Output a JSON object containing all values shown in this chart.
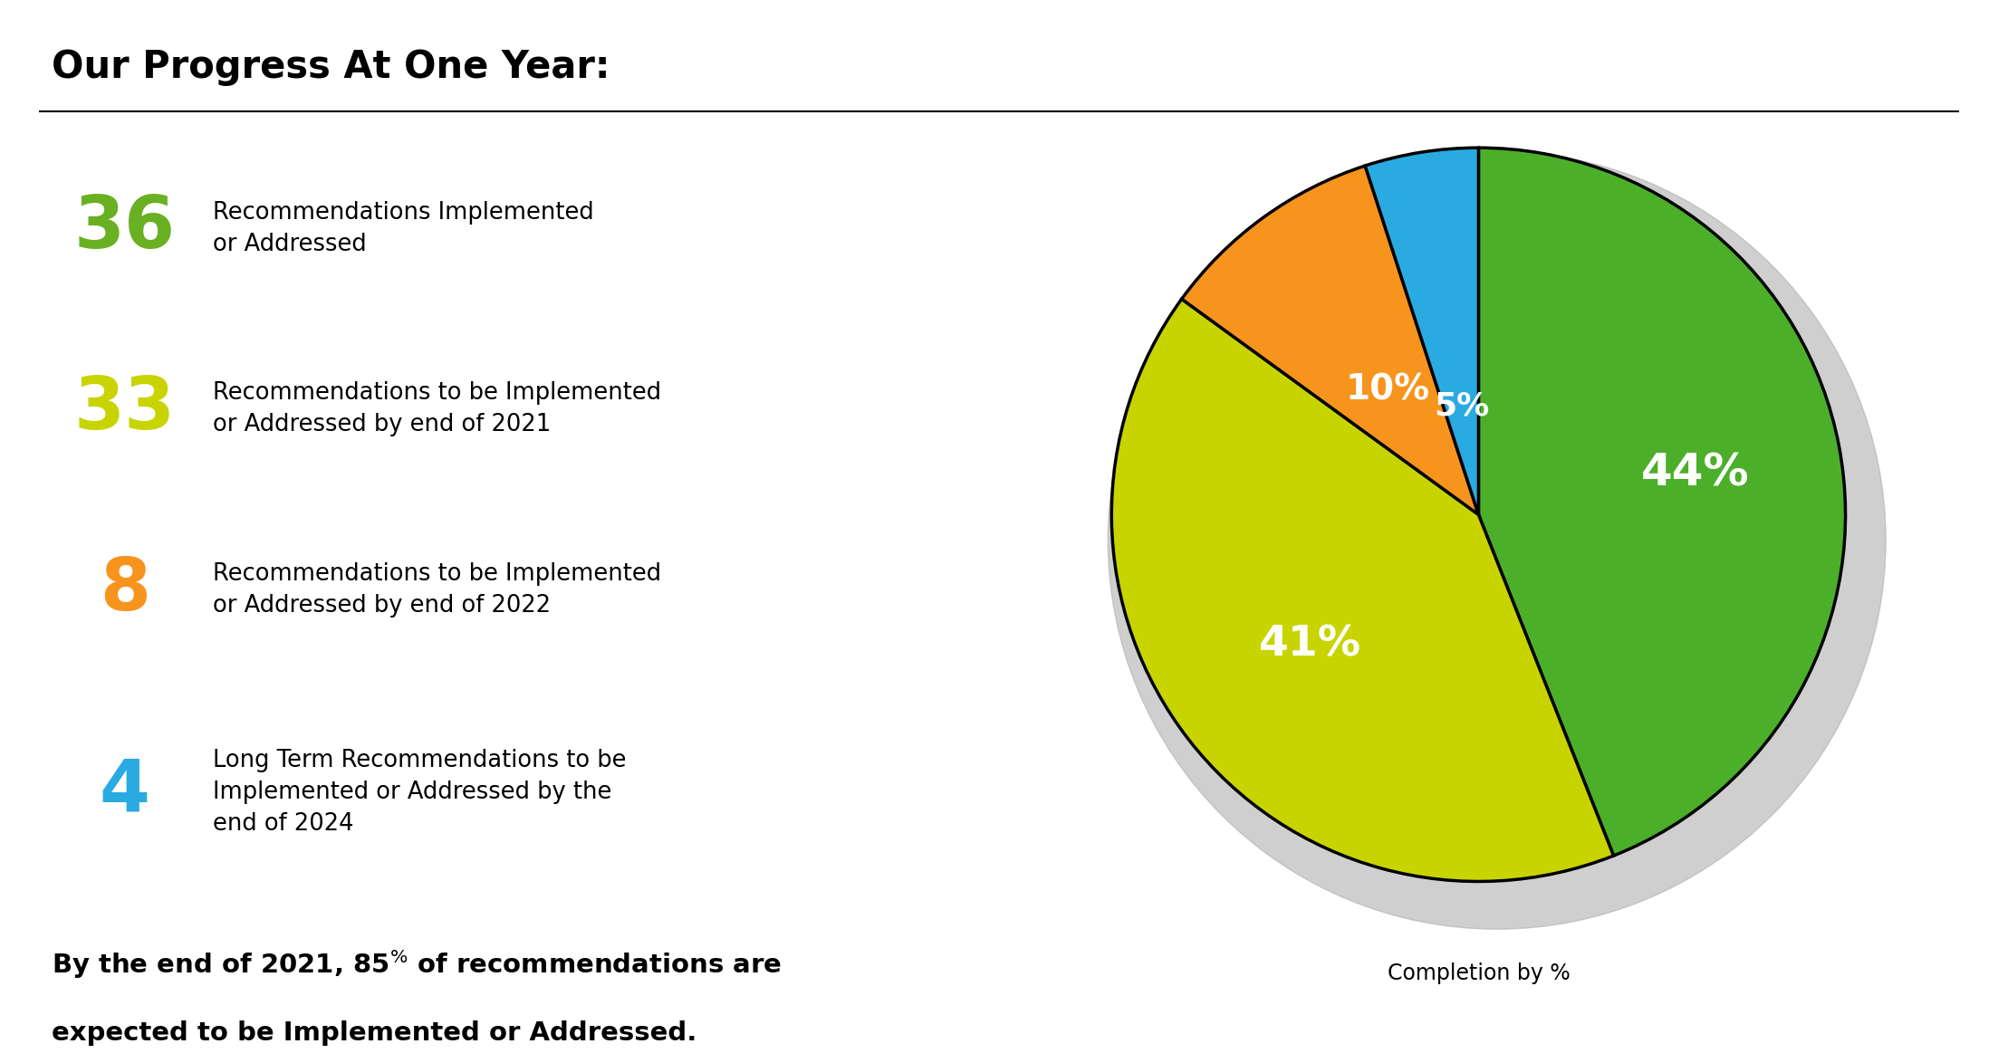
{
  "title": "Our Progress At One Year:",
  "pie_values": [
    44,
    41,
    10,
    5
  ],
  "pie_colors": [
    "#4caf2a",
    "#c8d400",
    "#f7941d",
    "#29abe2"
  ],
  "pie_labels": [
    "44%",
    "41%",
    "10%",
    "5%"
  ],
  "caption": "Completion by %",
  "items": [
    {
      "number": "36",
      "color": "#6ab023",
      "text": "Recommendations Implemented\nor Addressed"
    },
    {
      "number": "33",
      "color": "#c8d400",
      "text": "Recommendations to be Implemented\nor Addressed by end of 2021"
    },
    {
      "number": "8",
      "color": "#f7941d",
      "text": "Recommendations to be Implemented\nor Addressed by end of 2022"
    },
    {
      "number": "4",
      "color": "#29abe2",
      "text": "Long Term Recommendations to be\nImplemented or Addressed by the\nend of 2024"
    }
  ],
  "background_color": "#ffffff",
  "text_color": "#000000",
  "label_radii": [
    0.6,
    0.58,
    0.42,
    0.3
  ],
  "label_fontsizes": [
    36,
    34,
    28,
    26
  ]
}
